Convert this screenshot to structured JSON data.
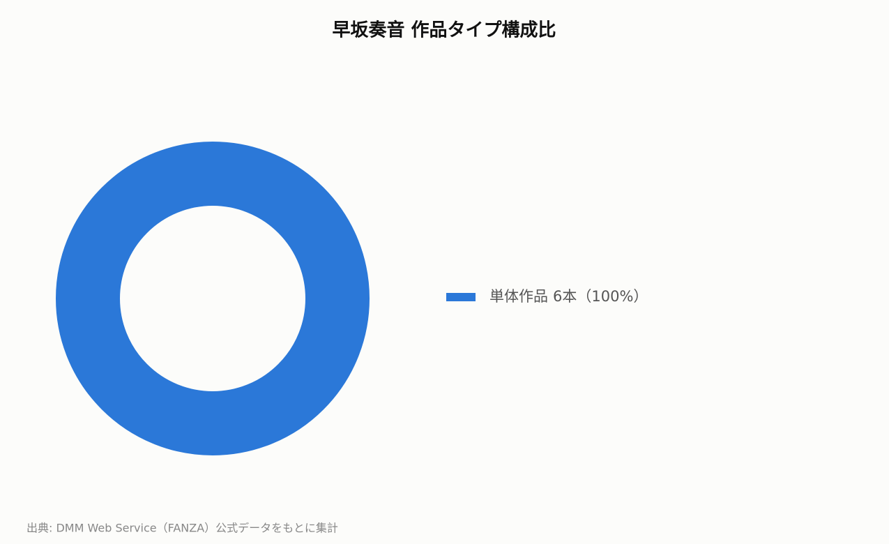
{
  "chart_data": {
    "type": "donut",
    "title": "早坂奏音 作品タイプ構成比",
    "categories": [
      "単体作品"
    ],
    "values": [
      6
    ],
    "value_labels": [
      "6本（100%）"
    ],
    "colors": [
      "#2b78d8"
    ],
    "legend": "right",
    "source": "出典: DMM Web Service（FANZA）公式データをもとに集計"
  }
}
